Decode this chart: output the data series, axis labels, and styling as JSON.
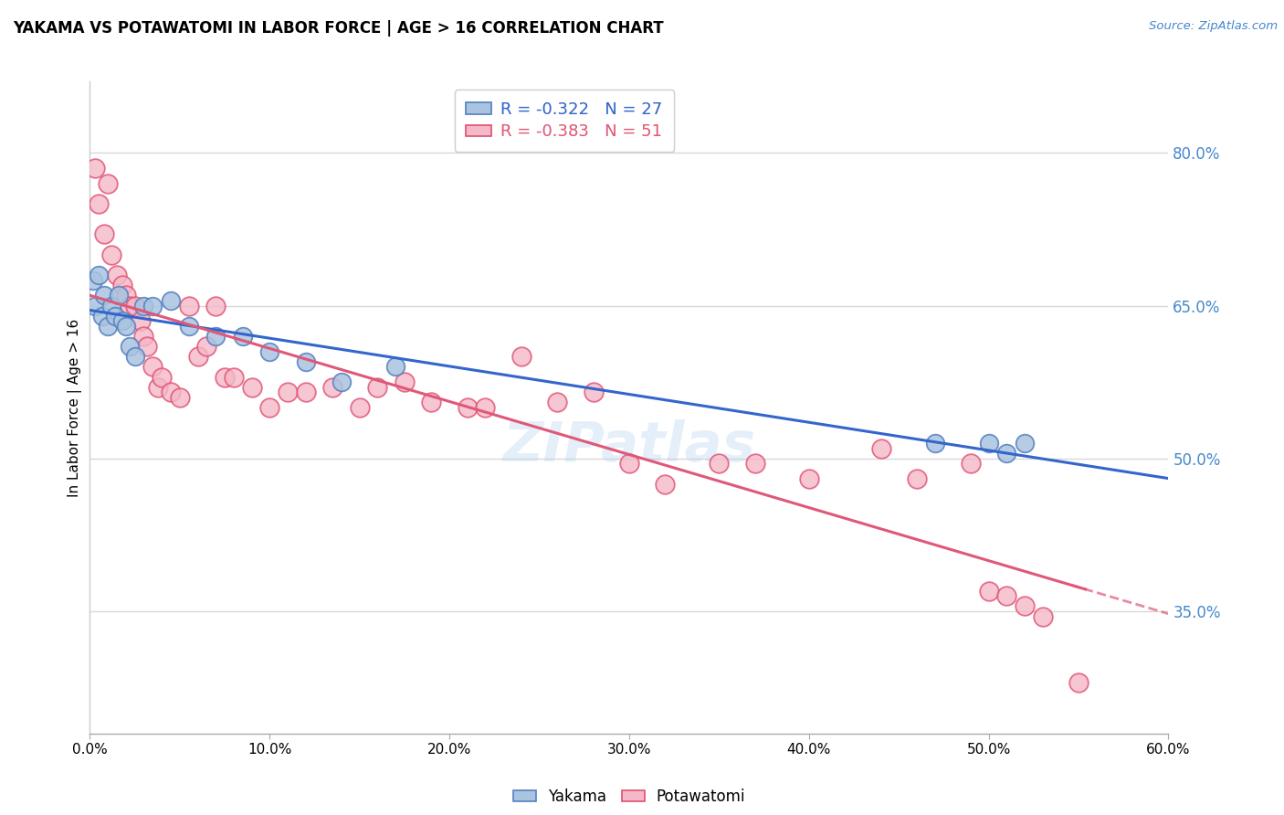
{
  "title": "YAKAMA VS POTAWATOMI IN LABOR FORCE | AGE > 16 CORRELATION CHART",
  "source": "Source: ZipAtlas.com",
  "ylabel": "In Labor Force | Age > 16",
  "right_yticks": [
    35.0,
    50.0,
    65.0,
    80.0
  ],
  "xlim": [
    0.0,
    60.0
  ],
  "ylim": [
    23.0,
    87.0
  ],
  "xticks": [
    0.0,
    10.0,
    20.0,
    30.0,
    40.0,
    50.0,
    60.0
  ],
  "yakama_R": -0.322,
  "yakama_N": 27,
  "potawatomi_R": -0.383,
  "potawatomi_N": 51,
  "yakama_color": "#a8c4e0",
  "potawatomi_color": "#f5b8c8",
  "yakama_edge_color": "#5580c0",
  "potawatomi_edge_color": "#e05070",
  "line_blue": "#3366cc",
  "line_pink": "#e05878",
  "legend_blue_label": "R = -0.322   N = 27",
  "legend_pink_label": "R = -0.383   N = 51",
  "grid_color": "#d8d8d8",
  "background_color": "#ffffff",
  "yakama_x": [
    0.2,
    0.3,
    0.5,
    0.7,
    0.8,
    1.0,
    1.2,
    1.4,
    1.6,
    1.8,
    2.0,
    2.2,
    2.5,
    3.0,
    3.5,
    4.5,
    5.5,
    7.0,
    8.5,
    10.0,
    12.0,
    14.0,
    17.0,
    47.0,
    50.0,
    51.0,
    52.0
  ],
  "yakama_y": [
    67.5,
    65.0,
    68.0,
    64.0,
    66.0,
    63.0,
    65.0,
    64.0,
    66.0,
    63.5,
    63.0,
    61.0,
    60.0,
    65.0,
    65.0,
    65.5,
    63.0,
    62.0,
    62.0,
    60.5,
    59.5,
    57.5,
    59.0,
    51.5,
    51.5,
    50.5,
    51.5
  ],
  "potawatomi_x": [
    0.3,
    0.5,
    0.8,
    1.0,
    1.2,
    1.5,
    1.8,
    2.0,
    2.2,
    2.5,
    2.8,
    3.0,
    3.2,
    3.5,
    3.8,
    4.0,
    4.5,
    5.0,
    5.5,
    6.0,
    6.5,
    7.0,
    7.5,
    8.0,
    9.0,
    10.0,
    11.0,
    12.0,
    13.5,
    15.0,
    16.0,
    17.5,
    19.0,
    21.0,
    22.0,
    24.0,
    26.0,
    28.0,
    30.0,
    32.0,
    35.0,
    37.0,
    40.0,
    44.0,
    46.0,
    49.0,
    50.0,
    51.0,
    52.0,
    53.0,
    55.0
  ],
  "potawatomi_y": [
    78.5,
    75.0,
    72.0,
    77.0,
    70.0,
    68.0,
    67.0,
    66.0,
    65.0,
    65.0,
    63.5,
    62.0,
    61.0,
    59.0,
    57.0,
    58.0,
    56.5,
    56.0,
    65.0,
    60.0,
    61.0,
    65.0,
    58.0,
    58.0,
    57.0,
    55.0,
    56.5,
    56.5,
    57.0,
    55.0,
    57.0,
    57.5,
    55.5,
    55.0,
    55.0,
    60.0,
    55.5,
    56.5,
    49.5,
    47.5,
    49.5,
    49.5,
    48.0,
    51.0,
    48.0,
    49.5,
    37.0,
    36.5,
    35.5,
    34.5,
    28.0
  ]
}
